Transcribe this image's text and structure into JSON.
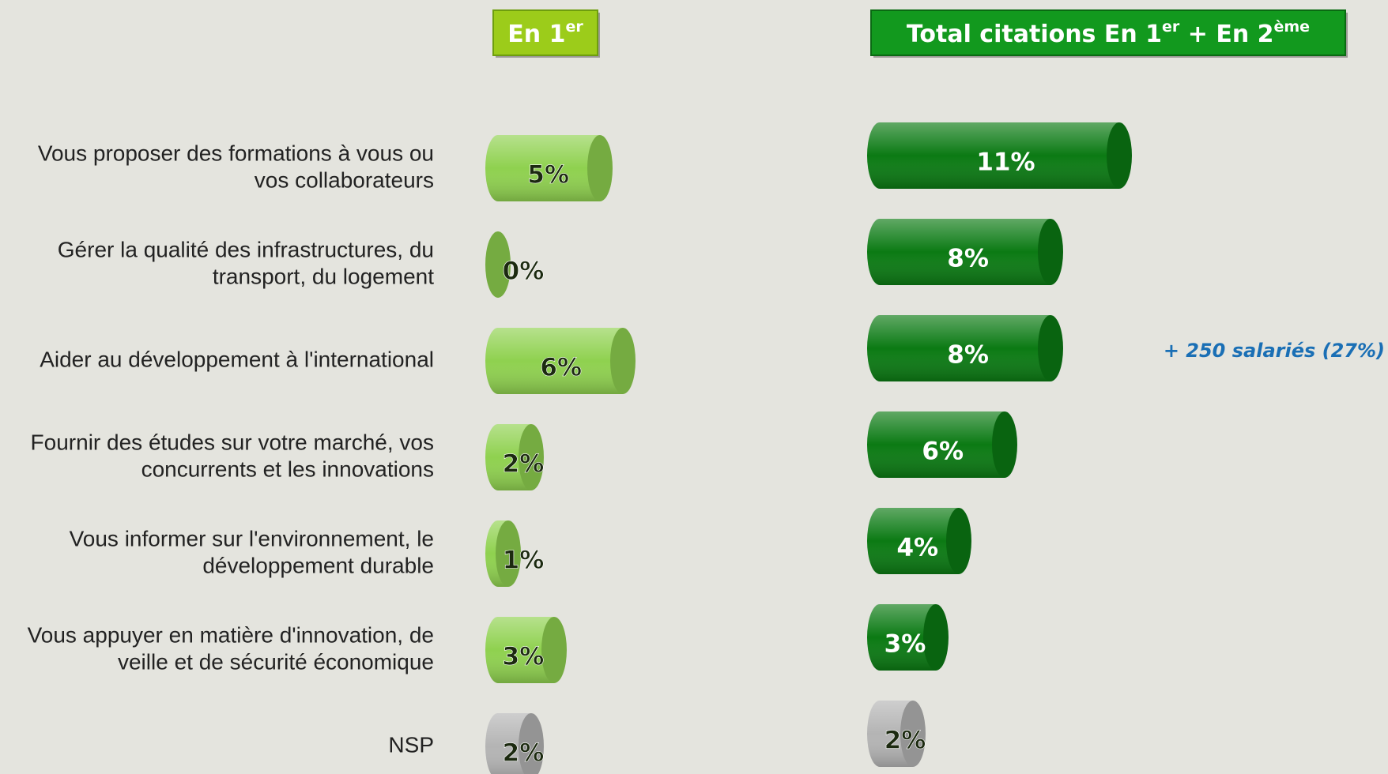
{
  "chart_data": {
    "type": "bar",
    "categories": [
      [
        "Vous proposer des formations à vous ou",
        "vos collaborateurs"
      ],
      [
        "Gérer la qualité des infrastructures, du",
        "transport, du logement"
      ],
      [
        "Aider au développement à l'international"
      ],
      [
        "Fournir des études sur votre marché, vos",
        "concurrents et les innovations"
      ],
      [
        "Vous informer sur l'environnement, le",
        "développement durable"
      ],
      [
        "Vous appuyer en matière d'innovation, de",
        "veille et de sécurité économique"
      ],
      [
        "NSP"
      ]
    ],
    "series": [
      {
        "name": [
          {
            "text": "En 1"
          },
          {
            "sup": "er"
          }
        ],
        "color": "#8fd14f",
        "colors": [
          "#8fd14f",
          "#8fd14f",
          "#8fd14f",
          "#8fd14f",
          "#8fd14f",
          "#8fd14f",
          "#b4b4b4"
        ],
        "values": [
          5,
          0,
          6,
          2,
          1,
          3,
          2
        ],
        "value_labels": [
          "5%",
          "0%",
          "6%",
          "2%",
          "1%",
          "3%",
          "2%"
        ]
      },
      {
        "name": [
          {
            "text": "Total citations En 1"
          },
          {
            "sup": "er"
          },
          {
            "text": " + En 2"
          },
          {
            "sup": "ème"
          }
        ],
        "color": "#0b7a13",
        "colors": [
          "#0b7a13",
          "#0b7a13",
          "#0b7a13",
          "#0b7a13",
          "#0b7a13",
          "#0b7a13",
          "#b4b4b4"
        ],
        "values": [
          11,
          8,
          8,
          6,
          4,
          3,
          2
        ],
        "value_labels": [
          "11%",
          "8%",
          "8%",
          "6%",
          "4%",
          "3%",
          "2%"
        ]
      }
    ],
    "annotation": {
      "text": "+ 250 salariés (27%)",
      "category": 2
    }
  }
}
